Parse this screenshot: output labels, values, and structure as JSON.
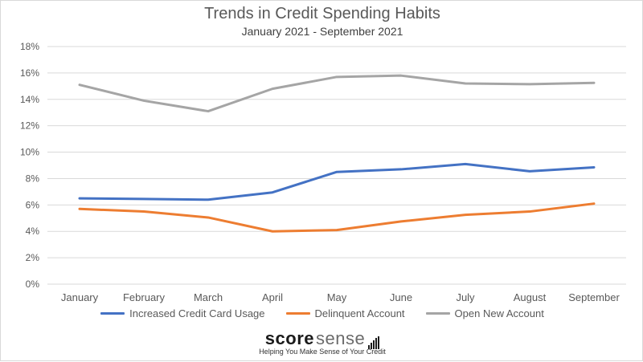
{
  "chart_data": {
    "type": "line",
    "title": "Trends in Credit Spending Habits",
    "subtitle": "January 2021 - September 2021",
    "categories": [
      "January",
      "February",
      "March",
      "April",
      "May",
      "June",
      "July",
      "August",
      "September"
    ],
    "ylim": [
      0,
      18
    ],
    "yticks": [
      "0%",
      "2%",
      "4%",
      "6%",
      "8%",
      "10%",
      "12%",
      "14%",
      "16%",
      "18%"
    ],
    "grid": true,
    "legend_position": "bottom",
    "series": [
      {
        "name": "Increased Credit Card Usage",
        "color": "#4472C4",
        "values": [
          6.5,
          6.45,
          6.4,
          6.95,
          8.5,
          8.7,
          9.1,
          8.55,
          8.85
        ]
      },
      {
        "name": "Delinquent Account",
        "color": "#ED7D31",
        "values": [
          5.7,
          5.5,
          5.05,
          4.0,
          4.1,
          4.75,
          5.25,
          5.5,
          6.1
        ]
      },
      {
        "name": "Open New Account",
        "color": "#A5A5A5",
        "values": [
          15.1,
          13.9,
          13.1,
          14.8,
          15.7,
          15.8,
          15.2,
          15.15,
          15.25
        ]
      }
    ]
  },
  "brand": {
    "name_part1": "score",
    "name_part2": "sense",
    "tagline": "Helping You Make Sense of Your Credit"
  }
}
